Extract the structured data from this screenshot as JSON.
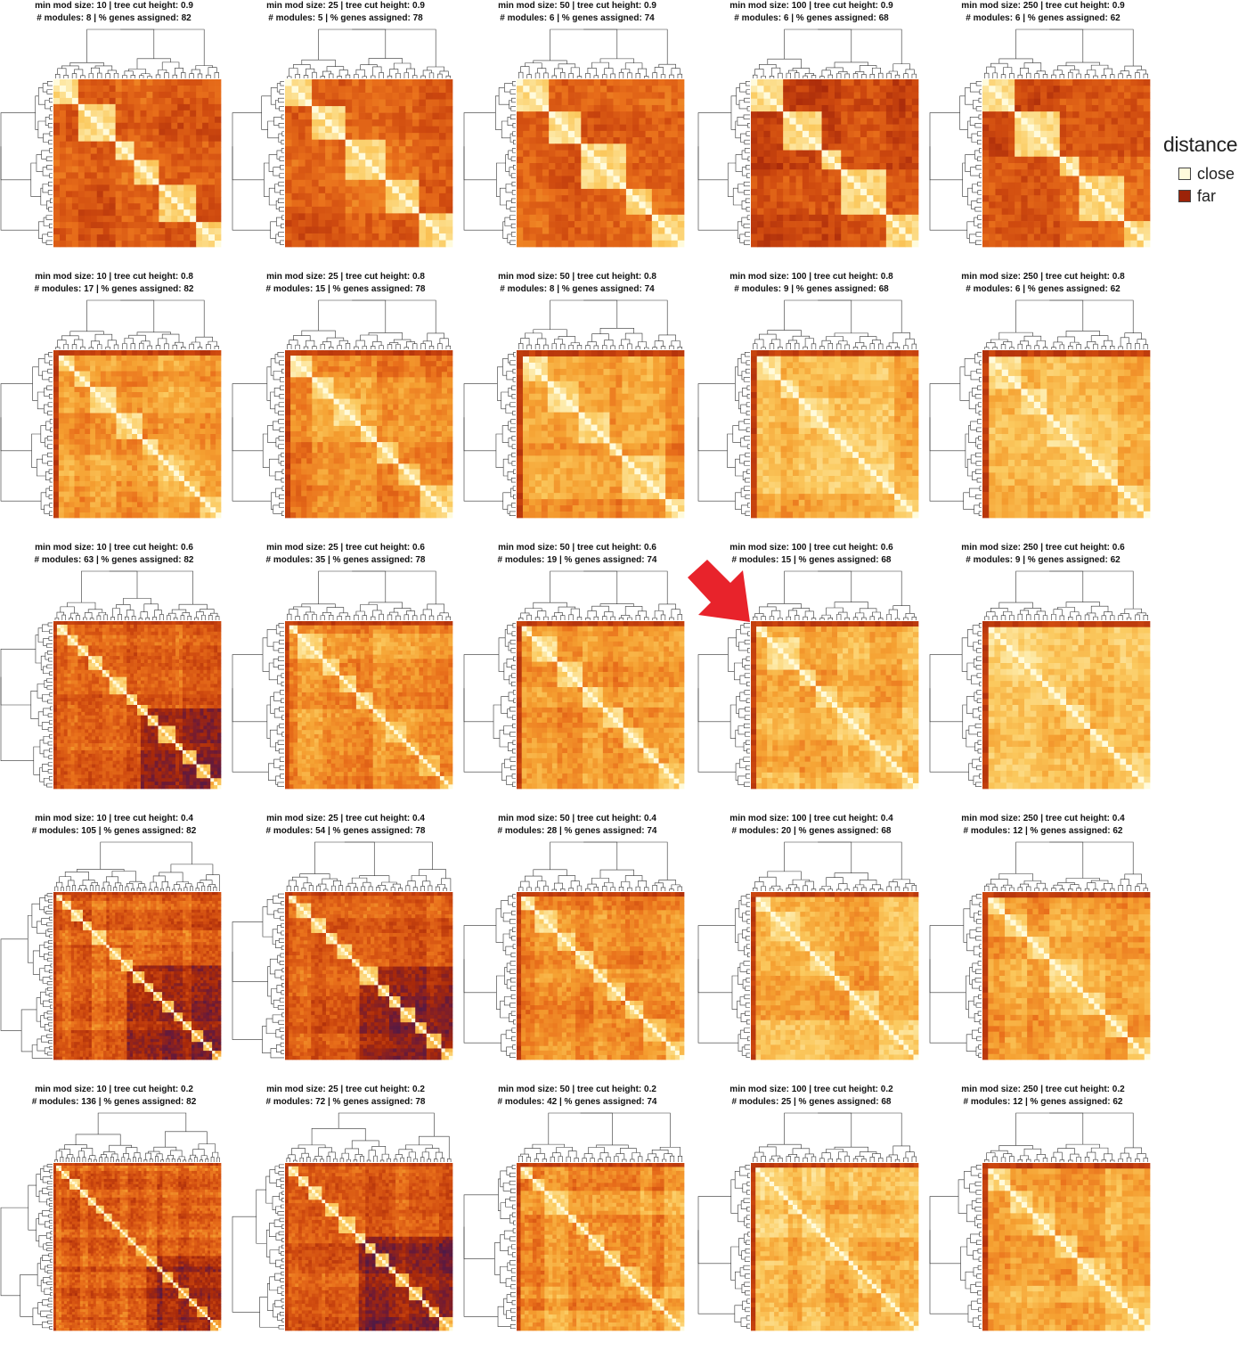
{
  "chart_data": {
    "type": "heatmap",
    "grid": {
      "rows": 5,
      "cols": 5
    },
    "description_parameters": {
      "min_mod_sizes": [
        10,
        25,
        50,
        100,
        250
      ],
      "tree_cut_heights": [
        0.9,
        0.8,
        0.6,
        0.4,
        0.2
      ]
    },
    "panels": [
      {
        "line1": "min mod size: 10  |  tree cut height: 0.9",
        "line2": "# modules: 8  |  % genes assigned: 82",
        "min_mod_size": 10,
        "tree_cut_height": 0.9,
        "modules": 8,
        "pct_assigned": 82
      },
      {
        "line1": "min mod size: 25  |  tree cut height: 0.9",
        "line2": "# modules: 5  |  % genes assigned: 78",
        "min_mod_size": 25,
        "tree_cut_height": 0.9,
        "modules": 5,
        "pct_assigned": 78
      },
      {
        "line1": "min mod size: 50  |  tree cut height: 0.9",
        "line2": "# modules: 6  |  % genes assigned: 74",
        "min_mod_size": 50,
        "tree_cut_height": 0.9,
        "modules": 6,
        "pct_assigned": 74
      },
      {
        "line1": "min mod size: 100  |  tree cut height: 0.9",
        "line2": "# modules: 6  |  % genes assigned: 68",
        "min_mod_size": 100,
        "tree_cut_height": 0.9,
        "modules": 6,
        "pct_assigned": 68
      },
      {
        "line1": "min mod size: 250  |  tree cut height: 0.9",
        "line2": "# modules: 6  |  % genes assigned: 62",
        "min_mod_size": 250,
        "tree_cut_height": 0.9,
        "modules": 6,
        "pct_assigned": 62
      },
      {
        "line1": "min mod size: 10  |  tree cut height: 0.8",
        "line2": "# modules: 17  |  % genes assigned: 82",
        "min_mod_size": 10,
        "tree_cut_height": 0.8,
        "modules": 17,
        "pct_assigned": 82
      },
      {
        "line1": "min mod size: 25  |  tree cut height: 0.8",
        "line2": "# modules: 15  |  % genes assigned: 78",
        "min_mod_size": 25,
        "tree_cut_height": 0.8,
        "modules": 15,
        "pct_assigned": 78
      },
      {
        "line1": "min mod size: 50  |  tree cut height: 0.8",
        "line2": "# modules: 8  |  % genes assigned: 74",
        "min_mod_size": 50,
        "tree_cut_height": 0.8,
        "modules": 8,
        "pct_assigned": 74
      },
      {
        "line1": "min mod size: 100  |  tree cut height: 0.8",
        "line2": "# modules: 9  |  % genes assigned: 68",
        "min_mod_size": 100,
        "tree_cut_height": 0.8,
        "modules": 9,
        "pct_assigned": 68
      },
      {
        "line1": "min mod size: 250  |  tree cut height: 0.8",
        "line2": "# modules: 6  |  % genes assigned: 62",
        "min_mod_size": 250,
        "tree_cut_height": 0.8,
        "modules": 6,
        "pct_assigned": 62
      },
      {
        "line1": "min mod size: 10  |  tree cut height: 0.6",
        "line2": "# modules: 63  |  % genes assigned: 82",
        "min_mod_size": 10,
        "tree_cut_height": 0.6,
        "modules": 63,
        "pct_assigned": 82
      },
      {
        "line1": "min mod size: 25  |  tree cut height: 0.6",
        "line2": "# modules: 35  |  % genes assigned: 78",
        "min_mod_size": 25,
        "tree_cut_height": 0.6,
        "modules": 35,
        "pct_assigned": 78
      },
      {
        "line1": "min mod size: 50  |  tree cut height: 0.6",
        "line2": "# modules: 19  |  % genes assigned: 74",
        "min_mod_size": 50,
        "tree_cut_height": 0.6,
        "modules": 19,
        "pct_assigned": 74
      },
      {
        "line1": "min mod size: 100  |  tree cut height: 0.6",
        "line2": "# modules: 15  |  % genes assigned: 68",
        "min_mod_size": 100,
        "tree_cut_height": 0.6,
        "modules": 15,
        "pct_assigned": 68,
        "highlighted": true
      },
      {
        "line1": "min mod size: 250  |  tree cut height: 0.6",
        "line2": "# modules: 9  |  % genes assigned: 62",
        "min_mod_size": 250,
        "tree_cut_height": 0.6,
        "modules": 9,
        "pct_assigned": 62
      },
      {
        "line1": "min mod size: 10  |  tree cut height: 0.4",
        "line2": "# modules: 105  |  % genes assigned: 82",
        "min_mod_size": 10,
        "tree_cut_height": 0.4,
        "modules": 105,
        "pct_assigned": 82
      },
      {
        "line1": "min mod size: 25  |  tree cut height: 0.4",
        "line2": "# modules: 54  |  % genes assigned: 78",
        "min_mod_size": 25,
        "tree_cut_height": 0.4,
        "modules": 54,
        "pct_assigned": 78
      },
      {
        "line1": "min mod size: 50  |  tree cut height: 0.4",
        "line2": "# modules: 28  |  % genes assigned: 74",
        "min_mod_size": 50,
        "tree_cut_height": 0.4,
        "modules": 28,
        "pct_assigned": 74
      },
      {
        "line1": "min mod size: 100  |  tree cut height: 0.4",
        "line2": "# modules: 20  |  % genes assigned: 68",
        "min_mod_size": 100,
        "tree_cut_height": 0.4,
        "modules": 20,
        "pct_assigned": 68
      },
      {
        "line1": "min mod size: 250  |  tree cut height: 0.4",
        "line2": "# modules: 12  |  % genes assigned: 62",
        "min_mod_size": 250,
        "tree_cut_height": 0.4,
        "modules": 12,
        "pct_assigned": 62
      },
      {
        "line1": "min mod size: 10  |  tree cut height: 0.2",
        "line2": "# modules: 136  |  % genes assigned: 82",
        "min_mod_size": 10,
        "tree_cut_height": 0.2,
        "modules": 136,
        "pct_assigned": 82
      },
      {
        "line1": "min mod size: 25  |  tree cut height: 0.2",
        "line2": "# modules: 72  |  % genes assigned: 78",
        "min_mod_size": 25,
        "tree_cut_height": 0.2,
        "modules": 72,
        "pct_assigned": 78
      },
      {
        "line1": "min mod size: 50  |  tree cut height: 0.2",
        "line2": "# modules: 42  |  % genes assigned: 74",
        "min_mod_size": 50,
        "tree_cut_height": 0.2,
        "modules": 42,
        "pct_assigned": 74
      },
      {
        "line1": "min mod size: 100  |  tree cut height: 0.2",
        "line2": "# modules: 25  |  % genes assigned: 68",
        "min_mod_size": 100,
        "tree_cut_height": 0.2,
        "modules": 25,
        "pct_assigned": 68
      },
      {
        "line1": "min mod size: 250  |  tree cut height: 0.2",
        "line2": "# modules: 12  |  % genes assigned: 62",
        "min_mod_size": 250,
        "tree_cut_height": 0.2,
        "modules": 12,
        "pct_assigned": 62
      }
    ],
    "legend": {
      "title": "distance",
      "placement": "right",
      "items": [
        {
          "label": "close",
          "color": "#fffbdc"
        },
        {
          "label": "far",
          "color": "#9c2308"
        }
      ]
    },
    "colors": {
      "scale": [
        "#fffbdc",
        "#fde9a6",
        "#fbc95e",
        "#f5a031",
        "#e9701b",
        "#cf4a0f",
        "#a8290a",
        "#6e1a35",
        "#3a1a52"
      ],
      "arrow": "#e8232b"
    }
  }
}
